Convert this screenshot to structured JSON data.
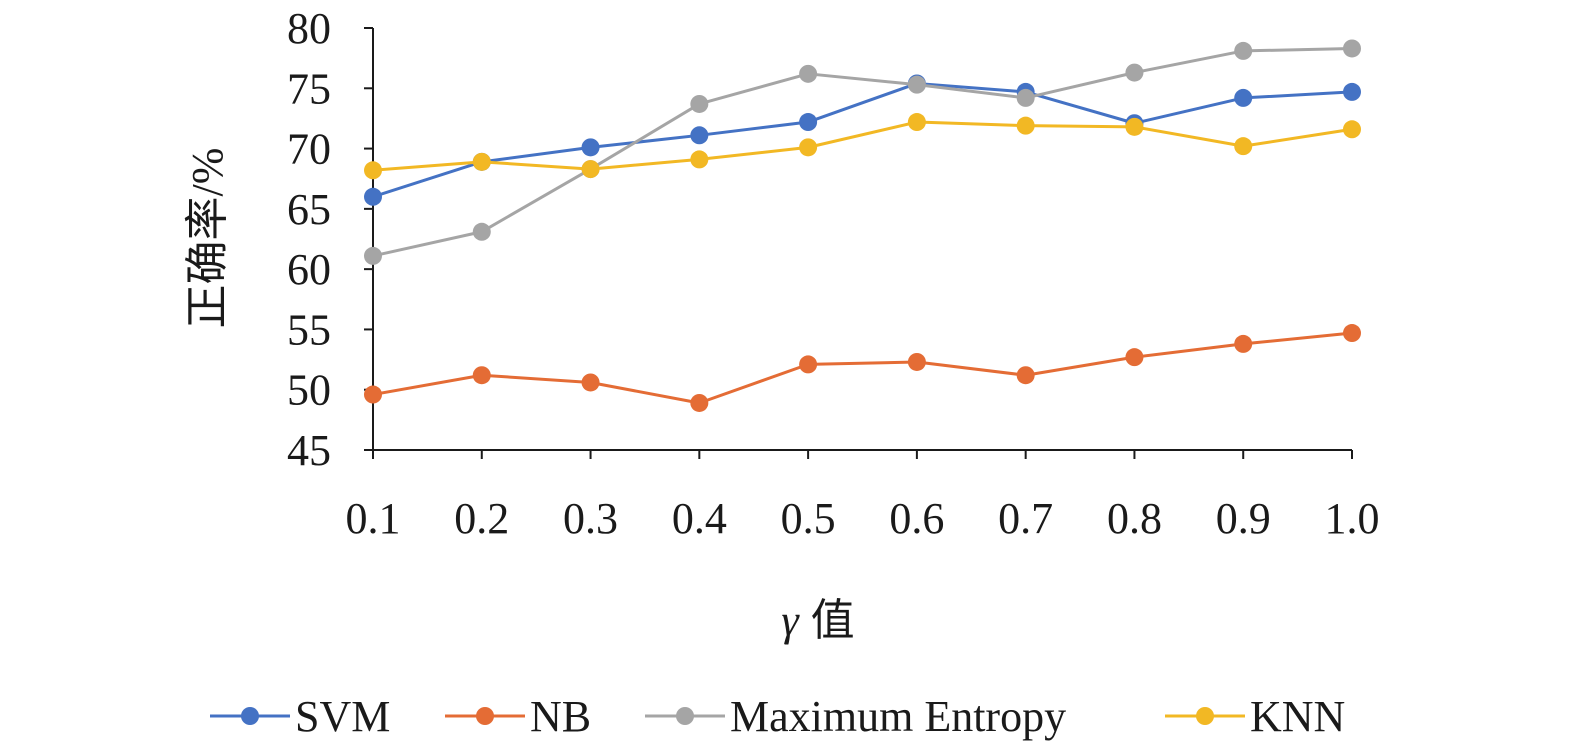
{
  "chart_data": {
    "type": "line",
    "title": "",
    "xlabel_symbol": "γ",
    "xlabel_text": "值",
    "ylabel": "正确率/%",
    "categories": [
      "0.1",
      "0.2",
      "0.3",
      "0.4",
      "0.5",
      "0.6",
      "0.7",
      "0.8",
      "0.9",
      "1.0"
    ],
    "ylim": [
      45,
      80
    ],
    "yticks": [
      45,
      50,
      55,
      60,
      65,
      70,
      75,
      80
    ],
    "legend_position": "bottom",
    "series": [
      {
        "name": "SVM",
        "color": "#4472C4",
        "values": [
          66.0,
          68.9,
          70.1,
          71.1,
          72.2,
          75.4,
          74.7,
          72.1,
          74.2,
          74.7
        ]
      },
      {
        "name": "NB",
        "color": "#E46C35",
        "values": [
          49.6,
          51.2,
          50.6,
          48.9,
          52.1,
          52.3,
          51.2,
          52.7,
          53.8,
          54.7
        ]
      },
      {
        "name": "Maximum Entropy",
        "color": "#A5A5A5",
        "values": [
          61.1,
          63.1,
          68.3,
          73.7,
          76.2,
          75.3,
          74.2,
          76.3,
          78.1,
          78.3
        ]
      },
      {
        "name": "KNN",
        "color": "#F2B824",
        "values": [
          68.2,
          68.9,
          68.3,
          69.1,
          70.1,
          72.2,
          71.9,
          71.8,
          70.2,
          71.6
        ]
      }
    ]
  }
}
